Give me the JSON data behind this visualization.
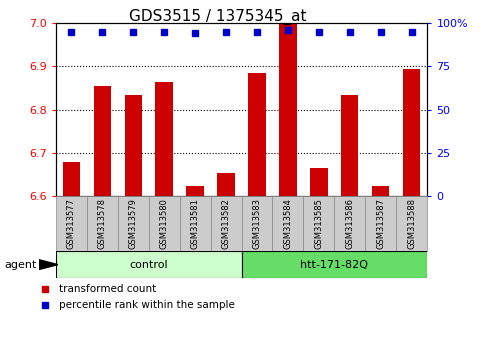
{
  "title": "GDS3515 / 1375345_at",
  "samples": [
    "GSM313577",
    "GSM313578",
    "GSM313579",
    "GSM313580",
    "GSM313581",
    "GSM313582",
    "GSM313583",
    "GSM313584",
    "GSM313585",
    "GSM313586",
    "GSM313587",
    "GSM313588"
  ],
  "bar_values": [
    6.68,
    6.855,
    6.835,
    6.865,
    6.625,
    6.655,
    6.885,
    7.0,
    6.665,
    6.835,
    6.625,
    6.895
  ],
  "bar_base": 6.6,
  "percentile_values": [
    95,
    95,
    95,
    95,
    94,
    95,
    95,
    96,
    95,
    95,
    95,
    95
  ],
  "ylim_left": [
    6.6,
    7.0
  ],
  "ylim_right": [
    0,
    100
  ],
  "yticks_left": [
    6.6,
    6.7,
    6.8,
    6.9,
    7.0
  ],
  "yticks_right": [
    0,
    25,
    50,
    75,
    100
  ],
  "ytick_labels_right": [
    "0",
    "25",
    "50",
    "75",
    "100%"
  ],
  "hlines": [
    6.7,
    6.8,
    6.9
  ],
  "bar_color": "#cc0000",
  "dot_color": "#0000cc",
  "ctrl_n": 6,
  "htt_n": 6,
  "control_label": "control",
  "htt_label": "htt-171-82Q",
  "agent_label": "agent",
  "legend_bar_label": "transformed count",
  "legend_dot_label": "percentile rank within the sample",
  "control_bg": "#ccffcc",
  "htt_bg": "#66dd66",
  "tick_label_bg": "#cccccc",
  "bar_width": 0.55,
  "title_fontsize": 11,
  "axis_fontsize": 8,
  "label_fontsize": 8,
  "sample_fontsize": 6
}
